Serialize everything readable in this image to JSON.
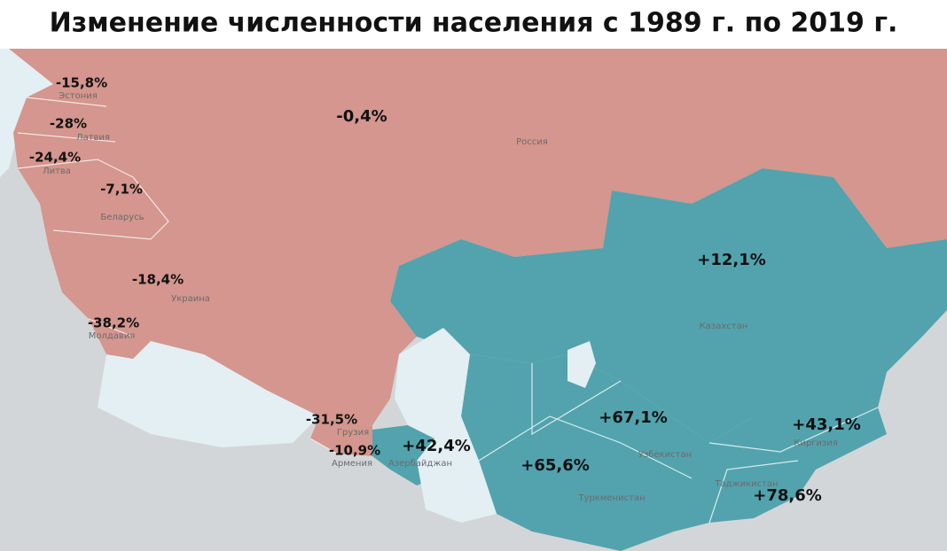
{
  "title": "Изменение численности населения с 1989 г. по 2019 г.",
  "regions": [
    {
      "name": "Россия",
      "change": "-0,4%"
    },
    {
      "name": "Эстония",
      "change": "-15,8%"
    },
    {
      "name": "Латвия",
      "change": "-28%"
    },
    {
      "name": "Литва",
      "change": "-24,4%"
    },
    {
      "name": "Беларусь",
      "change": "-7,1%"
    },
    {
      "name": "Украина",
      "change": "-18,4%"
    },
    {
      "name": "Молдавия",
      "change": "-38,2%"
    },
    {
      "name": "Грузия",
      "change": "-31,5%"
    },
    {
      "name": "Армения",
      "change": "-10,9%"
    },
    {
      "name": "Азербайджан",
      "change": "+42,4%"
    },
    {
      "name": "Казахстан",
      "change": "+12,1%"
    },
    {
      "name": "Узбекистан",
      "change": "+67,1%"
    },
    {
      "name": "Туркменистан",
      "change": "+65,6%"
    },
    {
      "name": "Киргизия",
      "change": "+43,1%"
    },
    {
      "name": "Таджикистан",
      "change": "+78,6%"
    }
  ]
}
